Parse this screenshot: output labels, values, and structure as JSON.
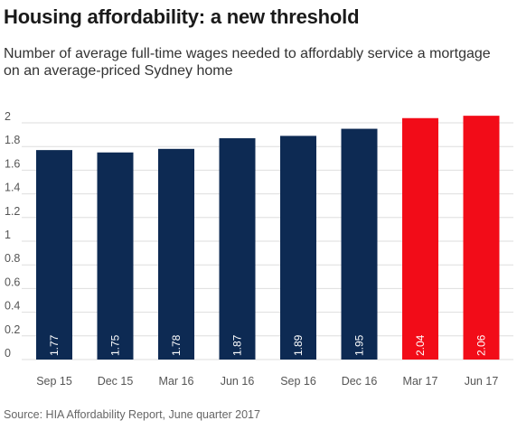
{
  "title": "Housing affordability: a new threshold",
  "subtitle": "Number of average full-time wages needed to affordably service a mortgage on an average-priced Sydney home",
  "source": "Source: HIA Affordability Report, June quarter 2017",
  "colors": {
    "navy": "#0d2a53",
    "red": "#f20c18",
    "grid": "#dedede",
    "axis_text": "#555555",
    "label_text": "#ffffff"
  },
  "chart_data": {
    "type": "bar",
    "title": "Housing affordability: a new threshold",
    "subtitle": "Number of average full-time wages needed to affordably service a mortgage on an average-priced Sydney home",
    "xlabel": "",
    "ylabel": "",
    "ylim": [
      0,
      2
    ],
    "yticks": [
      "0",
      "0.2",
      "0.4",
      "0.6",
      "0.8",
      "1",
      "1.2",
      "1.4",
      "1.6",
      "1.8",
      "2"
    ],
    "ytick_values": [
      0,
      0.2,
      0.4,
      0.6,
      0.8,
      1,
      1.2,
      1.4,
      1.6,
      1.8,
      2
    ],
    "grid": true,
    "legend": "none",
    "categories": [
      "Sep 15",
      "Dec 15",
      "Mar 16",
      "Jun 16",
      "Sep 16",
      "Dec 16",
      "Mar 17",
      "Jun 17"
    ],
    "values": [
      1.77,
      1.75,
      1.78,
      1.87,
      1.89,
      1.95,
      2.04,
      2.06
    ],
    "value_labels": [
      "1.77",
      "1.75",
      "1.78",
      "1.87",
      "1.89",
      "1.95",
      "2.04",
      "2.06"
    ],
    "bar_colors": [
      "#0d2a53",
      "#0d2a53",
      "#0d2a53",
      "#0d2a53",
      "#0d2a53",
      "#0d2a53",
      "#f20c18",
      "#f20c18"
    ]
  }
}
